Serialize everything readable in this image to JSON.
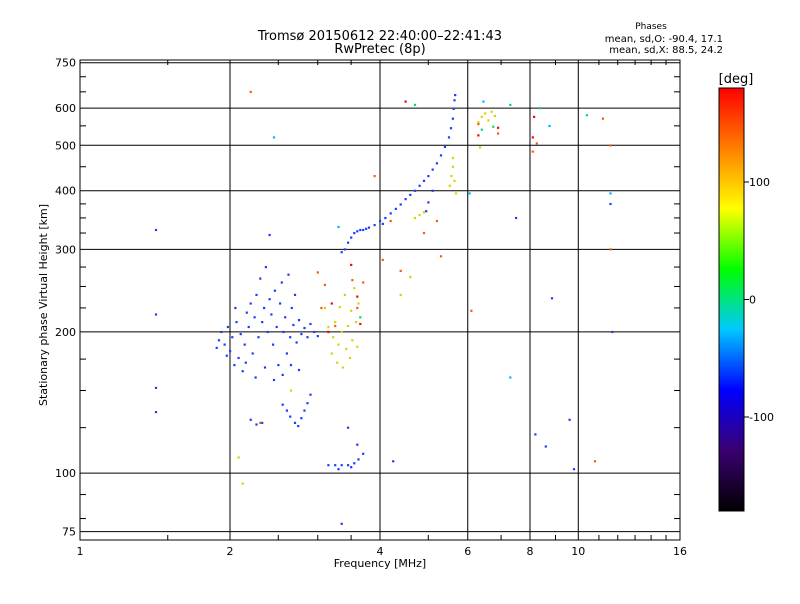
{
  "chart_data": {
    "type": "scatter",
    "title": "Tromsø 20150612 22:40:00–22:41:43",
    "subtitle": "RwPretec (8p)",
    "xlabel": "Frequency [MHz]",
    "ylabel": "Stationary phase Virtual Height [km]",
    "x_scale": "log",
    "y_scale": "log",
    "xlim": [
      1,
      16
    ],
    "ylim": [
      72,
      760
    ],
    "x_ticks": [
      1,
      2,
      4,
      6,
      8,
      10,
      16
    ],
    "y_ticks": [
      75,
      100,
      200,
      300,
      400,
      500,
      600,
      750
    ],
    "grid": true,
    "stats": {
      "heading": "Phases",
      "line1": "mean, sd,O: -90.4, 17.1",
      "line2": "mean, sd,X:  88.5, 24.2"
    },
    "colorbar": {
      "label": "[deg]",
      "range": [
        -180,
        180
      ],
      "ticks": [
        100,
        0,
        -100
      ],
      "stops": [
        "#000000",
        "#3a0070",
        "#0000ff",
        "#00c8ff",
        "#00ff00",
        "#ffff00",
        "#ff7f00",
        "#ff0000"
      ]
    },
    "series": [
      {
        "phase": -90,
        "color": "#1a3cff",
        "points": [
          [
            1.42,
            330
          ],
          [
            1.42,
            218
          ],
          [
            1.42,
            152
          ],
          [
            1.42,
            135
          ],
          [
            1.88,
            185
          ],
          [
            1.9,
            192
          ],
          [
            1.92,
            200
          ],
          [
            1.95,
            188
          ],
          [
            1.97,
            178
          ],
          [
            1.98,
            205
          ],
          [
            2.0,
            182
          ],
          [
            2.02,
            195
          ],
          [
            2.04,
            170
          ],
          [
            2.06,
            210
          ],
          [
            2.08,
            176
          ],
          [
            2.1,
            198
          ],
          [
            2.12,
            165
          ],
          [
            2.14,
            188
          ],
          [
            2.16,
            220
          ],
          [
            2.18,
            205
          ],
          [
            2.2,
            230
          ],
          [
            2.22,
            180
          ],
          [
            2.24,
            215
          ],
          [
            2.26,
            240
          ],
          [
            2.28,
            195
          ],
          [
            2.3,
            260
          ],
          [
            2.32,
            210
          ],
          [
            2.34,
            225
          ],
          [
            2.36,
            275
          ],
          [
            2.38,
            200
          ],
          [
            2.4,
            235
          ],
          [
            2.42,
            218
          ],
          [
            2.44,
            188
          ],
          [
            2.46,
            245
          ],
          [
            2.48,
            205
          ],
          [
            2.5,
            170
          ],
          [
            2.52,
            230
          ],
          [
            2.54,
            255
          ],
          [
            2.56,
            200
          ],
          [
            2.58,
            215
          ],
          [
            2.6,
            180
          ],
          [
            2.62,
            265
          ],
          [
            2.64,
            195
          ],
          [
            2.66,
            225
          ],
          [
            2.68,
            207
          ],
          [
            2.7,
            240
          ],
          [
            2.72,
            190
          ],
          [
            2.75,
            212
          ],
          [
            2.78,
            198
          ],
          [
            2.82,
            204
          ],
          [
            2.86,
            195
          ],
          [
            2.9,
            208
          ],
          [
            2.95,
            200
          ],
          [
            3.0,
            196
          ],
          [
            2.05,
            225
          ],
          [
            2.15,
            172
          ],
          [
            2.25,
            160
          ],
          [
            2.35,
            168
          ],
          [
            2.45,
            158
          ],
          [
            2.55,
            162
          ],
          [
            2.65,
            170
          ],
          [
            2.75,
            166
          ],
          [
            2.55,
            140
          ],
          [
            2.6,
            136
          ],
          [
            2.64,
            132
          ],
          [
            2.7,
            128
          ],
          [
            2.74,
            126
          ],
          [
            2.78,
            131
          ],
          [
            2.82,
            136
          ],
          [
            2.86,
            141
          ],
          [
            2.9,
            147
          ],
          [
            2.2,
            130
          ],
          [
            2.26,
            127
          ],
          [
            2.32,
            128
          ],
          [
            3.35,
            296
          ],
          [
            3.4,
            300
          ],
          [
            3.45,
            310
          ],
          [
            3.5,
            318
          ],
          [
            3.55,
            325
          ],
          [
            3.6,
            328
          ],
          [
            3.65,
            330
          ],
          [
            3.7,
            330
          ],
          [
            3.75,
            332
          ],
          [
            3.8,
            334
          ],
          [
            3.9,
            338
          ],
          [
            4.0,
            345
          ],
          [
            4.05,
            340
          ],
          [
            4.1,
            350
          ],
          [
            4.2,
            358
          ],
          [
            4.3,
            366
          ],
          [
            4.4,
            374
          ],
          [
            4.5,
            384
          ],
          [
            4.6,
            392
          ],
          [
            4.7,
            400
          ],
          [
            4.8,
            410
          ],
          [
            4.9,
            420
          ],
          [
            5.0,
            430
          ],
          [
            5.1,
            444
          ],
          [
            5.2,
            458
          ],
          [
            5.3,
            476
          ],
          [
            5.4,
            496
          ],
          [
            5.5,
            520
          ],
          [
            5.55,
            544
          ],
          [
            5.6,
            570
          ],
          [
            5.62,
            598
          ],
          [
            5.64,
            624
          ],
          [
            5.66,
            640
          ],
          [
            5.1,
            400
          ],
          [
            5.0,
            378
          ],
          [
            4.95,
            362
          ],
          [
            3.15,
            104
          ],
          [
            3.25,
            104
          ],
          [
            3.35,
            104
          ],
          [
            3.45,
            104
          ],
          [
            3.55,
            105
          ],
          [
            3.62,
            107
          ],
          [
            3.5,
            103
          ],
          [
            3.3,
            102
          ],
          [
            4.25,
            106
          ],
          [
            3.35,
            78
          ],
          [
            3.45,
            125
          ],
          [
            3.6,
            115
          ],
          [
            3.7,
            110
          ],
          [
            8.2,
            121
          ],
          [
            8.6,
            114
          ],
          [
            9.6,
            130
          ],
          [
            9.8,
            102
          ],
          [
            8.85,
            236
          ],
          [
            11.7,
            200
          ],
          [
            11.6,
            375
          ],
          [
            7.5,
            350
          ],
          [
            2.4,
            322
          ]
        ]
      },
      {
        "phase": 85,
        "color": "#dcd200",
        "points": [
          [
            3.2,
            180
          ],
          [
            3.22,
            195
          ],
          [
            3.25,
            210
          ],
          [
            3.28,
            172
          ],
          [
            3.3,
            188
          ],
          [
            3.32,
            226
          ],
          [
            3.35,
            200
          ],
          [
            3.37,
            168
          ],
          [
            3.4,
            240
          ],
          [
            3.42,
            184
          ],
          [
            3.45,
            206
          ],
          [
            3.48,
            176
          ],
          [
            3.5,
            222
          ],
          [
            3.52,
            192
          ],
          [
            3.55,
            248
          ],
          [
            3.58,
            210
          ],
          [
            3.6,
            186
          ],
          [
            3.62,
            230
          ],
          [
            5.52,
            410
          ],
          [
            5.56,
            430
          ],
          [
            5.6,
            450
          ],
          [
            5.64,
            420
          ],
          [
            5.68,
            395
          ],
          [
            5.6,
            470
          ],
          [
            6.3,
            560
          ],
          [
            6.4,
            575
          ],
          [
            6.5,
            585
          ],
          [
            6.7,
            590
          ],
          [
            6.8,
            578
          ],
          [
            6.6,
            565
          ],
          [
            4.8,
            355
          ],
          [
            4.9,
            360
          ],
          [
            4.7,
            350
          ],
          [
            2.08,
            108
          ],
          [
            2.12,
            95
          ],
          [
            4.4,
            240
          ],
          [
            4.6,
            262
          ],
          [
            3.1,
            225
          ],
          [
            3.15,
            205
          ],
          [
            2.65,
            150
          ],
          [
            6.35,
            495
          ]
        ]
      },
      {
        "phase": 150,
        "color": "#ff5a00",
        "points": [
          [
            2.2,
            650
          ],
          [
            2.3,
            128
          ],
          [
            3.0,
            268
          ],
          [
            3.05,
            225
          ],
          [
            3.1,
            252
          ],
          [
            3.25,
            206
          ],
          [
            3.6,
            225
          ],
          [
            3.52,
            258
          ],
          [
            3.7,
            255
          ],
          [
            4.4,
            270
          ],
          [
            4.9,
            325
          ],
          [
            5.2,
            345
          ],
          [
            6.3,
            555
          ],
          [
            6.9,
            530
          ],
          [
            10.8,
            106
          ],
          [
            11.2,
            570
          ],
          [
            11.6,
            300
          ],
          [
            11.6,
            500
          ],
          [
            6.1,
            222
          ],
          [
            5.3,
            290
          ],
          [
            8.25,
            505
          ],
          [
            8.1,
            485
          ],
          [
            3.9,
            430
          ],
          [
            4.05,
            285
          ],
          [
            4.2,
            345
          ]
        ]
      },
      {
        "phase": 175,
        "color": "#ff0000",
        "points": [
          [
            4.5,
            620
          ],
          [
            6.3,
            525
          ],
          [
            6.9,
            545
          ],
          [
            8.15,
            575
          ],
          [
            8.1,
            520
          ],
          [
            3.65,
            208
          ],
          [
            3.15,
            200
          ],
          [
            3.2,
            230
          ],
          [
            3.5,
            278
          ],
          [
            3.6,
            238
          ]
        ]
      },
      {
        "phase": 20,
        "color": "#00dc64",
        "points": [
          [
            4.7,
            610
          ],
          [
            7.3,
            610
          ],
          [
            6.4,
            540
          ],
          [
            3.65,
            215
          ],
          [
            8.35,
            600
          ],
          [
            6.75,
            548
          ],
          [
            10.4,
            580
          ]
        ]
      },
      {
        "phase": -50,
        "color": "#00b4ff",
        "points": [
          [
            2.45,
            520
          ],
          [
            6.05,
            395
          ],
          [
            8.75,
            550
          ],
          [
            6.45,
            620
          ],
          [
            7.3,
            160
          ],
          [
            11.6,
            395
          ],
          [
            3.3,
            335
          ]
        ]
      }
    ]
  }
}
